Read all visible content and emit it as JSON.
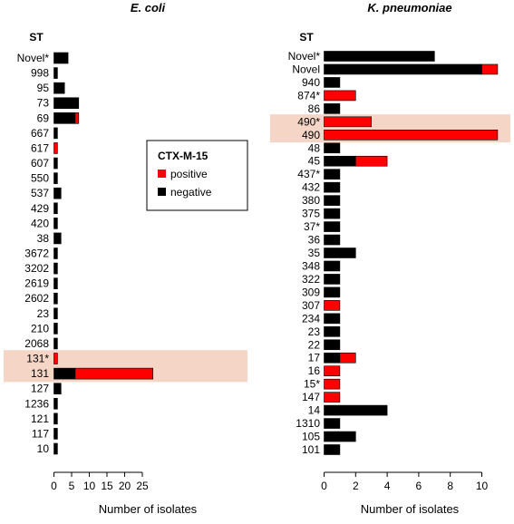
{
  "colors": {
    "positive": "#ff0000",
    "negative": "#000000",
    "highlight": "#f5d5c6"
  },
  "legend": {
    "title": "CTX-M-15",
    "positive": "positive",
    "negative": "negative"
  },
  "chart_data": [
    {
      "type": "bar",
      "orientation": "horizontal",
      "stacked": true,
      "title": "E. coli",
      "category_header": "ST",
      "xlabel": "Number of isolates",
      "xlim": [
        0,
        28
      ],
      "xticks": [
        0,
        5,
        10,
        15,
        20,
        25
      ],
      "highlighted_categories": [
        "131*",
        "131"
      ],
      "categories": [
        "Novel*",
        "998",
        "95",
        "73",
        "69",
        "667",
        "617",
        "607",
        "550",
        "537",
        "429",
        "420",
        "38",
        "3672",
        "3202",
        "2619",
        "2602",
        "23",
        "210",
        "2068",
        "131*",
        "131",
        "127",
        "1236",
        "121",
        "117",
        "10"
      ],
      "series": [
        {
          "name": "negative",
          "values": [
            4,
            1,
            3,
            7,
            6,
            1,
            0,
            1,
            1,
            2,
            1,
            1,
            2,
            1,
            1,
            1,
            1,
            1,
            1,
            1,
            0,
            6,
            2,
            1,
            1,
            1,
            1
          ]
        },
        {
          "name": "positive",
          "values": [
            0,
            0,
            0,
            0,
            1,
            0,
            1,
            0,
            0,
            0,
            0,
            0,
            0,
            0,
            0,
            0,
            0,
            0,
            0,
            0,
            1,
            22,
            0,
            0,
            0,
            0,
            0
          ]
        }
      ]
    },
    {
      "type": "bar",
      "orientation": "horizontal",
      "stacked": true,
      "title": "K. pneumoniae",
      "category_header": "ST",
      "xlabel": "Number of isolates",
      "xlim": [
        0,
        11
      ],
      "xticks": [
        0,
        2,
        4,
        6,
        8,
        10
      ],
      "highlighted_categories": [
        "490*",
        "490"
      ],
      "categories": [
        "Novel*",
        "Novel",
        "940",
        "874*",
        "86",
        "490*",
        "490",
        "48",
        "45",
        "437*",
        "432",
        "380",
        "375",
        "37*",
        "36",
        "35",
        "348",
        "322",
        "309",
        "307",
        "234",
        "23",
        "22",
        "17",
        "16",
        "15*",
        "147",
        "14",
        "1310",
        "105",
        "101"
      ],
      "series": [
        {
          "name": "negative",
          "values": [
            7,
            10,
            1,
            0,
            1,
            0,
            0,
            1,
            2,
            1,
            1,
            1,
            1,
            1,
            1,
            2,
            1,
            1,
            1,
            0,
            1,
            1,
            1,
            1,
            0,
            0,
            0,
            4,
            1,
            2,
            1
          ]
        },
        {
          "name": "positive",
          "values": [
            0,
            1,
            0,
            2,
            0,
            3,
            11,
            0,
            2,
            0,
            0,
            0,
            0,
            0,
            0,
            0,
            0,
            0,
            0,
            1,
            0,
            0,
            0,
            1,
            1,
            1,
            1,
            0,
            0,
            0,
            0
          ]
        }
      ]
    }
  ]
}
